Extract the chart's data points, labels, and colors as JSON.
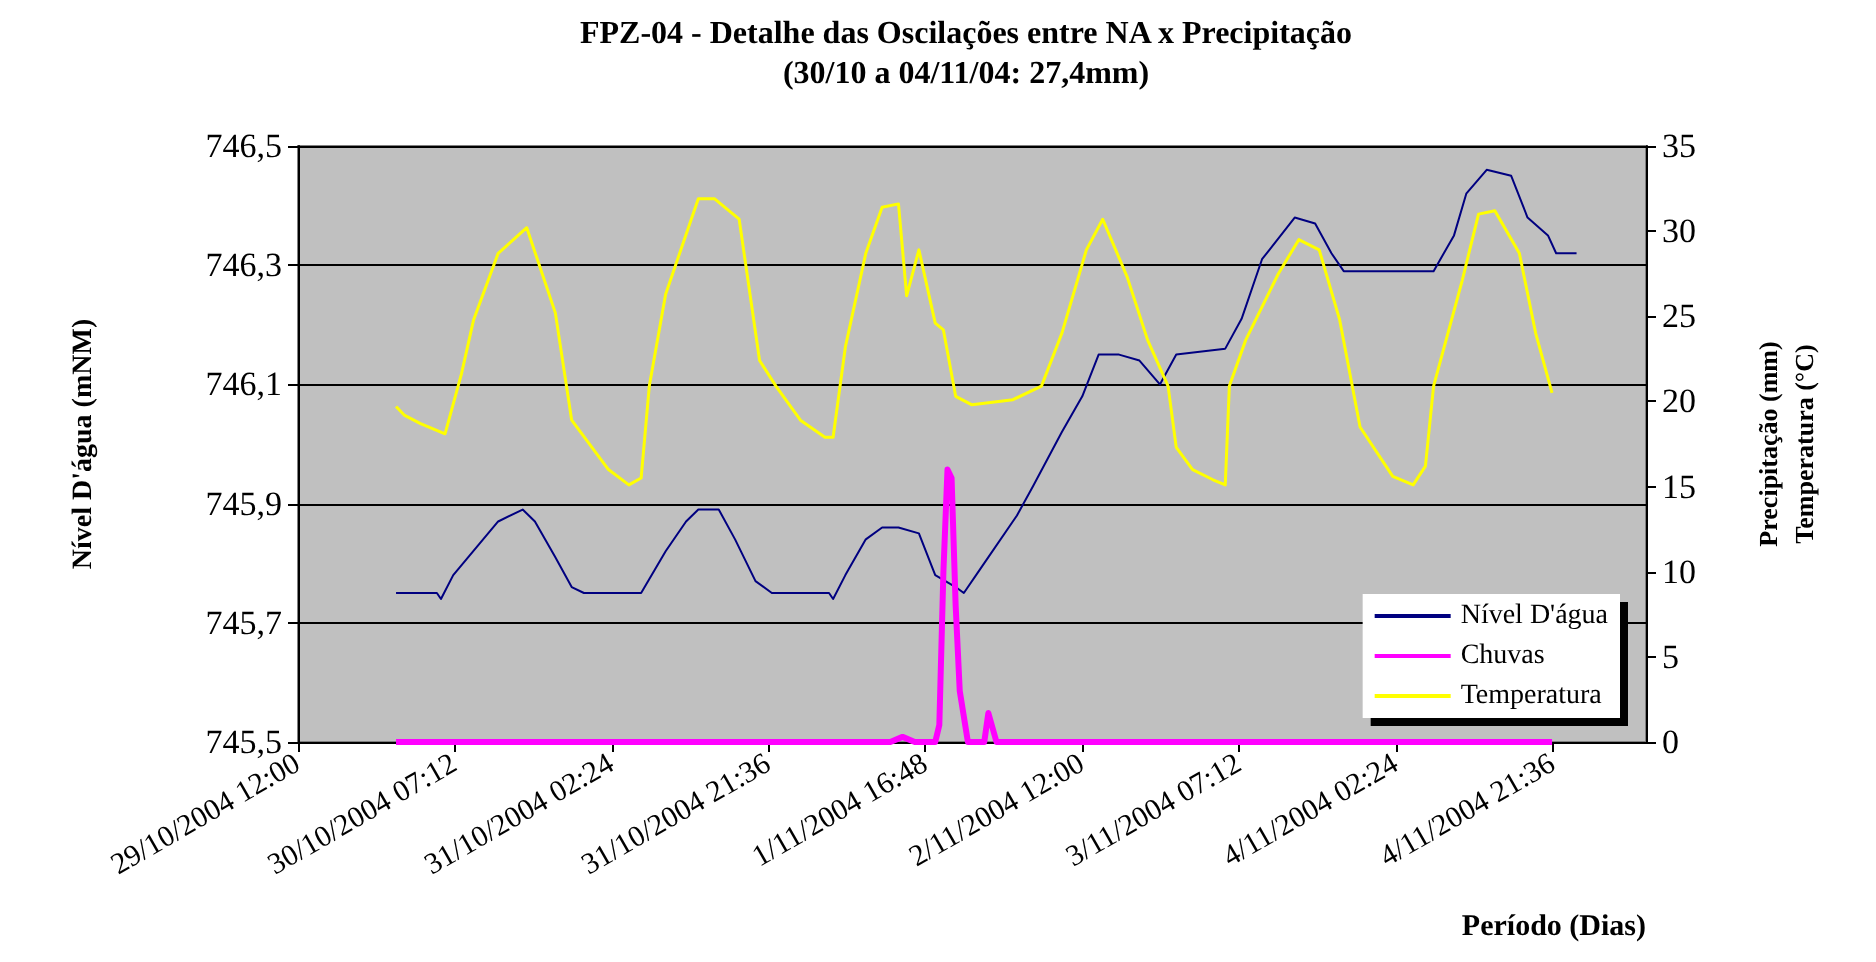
{
  "chart_data": {
    "type": "line",
    "title": "FPZ-04 - Detalhe das Oscilações entre NA x Precipitação",
    "subtitle": "(30/10 a 04/11/04: 27,4mm)",
    "xlabel": "Período (Dias)",
    "ylabel": "Nível D'água (mNM)",
    "y2label": "Precipitação (mm)\nTemperatura (°C)",
    "xlim": [
      "2004-10-29T12:00",
      "2004-11-05T09:00"
    ],
    "xticks": [
      {
        "value": "2004-10-29T12:00",
        "label": "29/10/2004 12:00"
      },
      {
        "value": "2004-10-30T07:12",
        "label": "30/10/2004 07:12"
      },
      {
        "value": "2004-10-31T02:24",
        "label": "31/10/2004 02:24"
      },
      {
        "value": "2004-10-31T21:36",
        "label": "31/10/2004 21:36"
      },
      {
        "value": "2004-11-01T16:48",
        "label": "1/11/2004 16:48"
      },
      {
        "value": "2004-11-02T12:00",
        "label": "2/11/2004 12:00"
      },
      {
        "value": "2004-11-03T07:12",
        "label": "3/11/2004 07:12"
      },
      {
        "value": "2004-11-04T02:24",
        "label": "4/11/2004 02:24"
      },
      {
        "value": "2004-11-04T21:36",
        "label": "4/11/2004 21:36"
      }
    ],
    "ylim": [
      745.5,
      746.5
    ],
    "yticks": [
      {
        "value": 745.5,
        "label": "745,5"
      },
      {
        "value": 745.7,
        "label": "745,7"
      },
      {
        "value": 745.9,
        "label": "745,9"
      },
      {
        "value": 746.1,
        "label": "746,1"
      },
      {
        "value": 746.3,
        "label": "746,3"
      },
      {
        "value": 746.5,
        "label": "746,5"
      }
    ],
    "y2lim": [
      0,
      35
    ],
    "y2ticks": [
      0,
      5,
      10,
      15,
      20,
      25,
      30,
      35
    ],
    "grid": "y",
    "legend": "bottom right",
    "series": [
      {
        "name": "Nível D'água",
        "color": "#000080",
        "x": [
          "2004-10-30T00:00",
          "2004-10-30T05:00",
          "2004-10-30T05:30",
          "2004-10-30T07:00",
          "2004-10-30T12:30",
          "2004-10-30T15:30",
          "2004-10-30T17:00",
          "2004-10-30T19:30",
          "2004-10-30T21:30",
          "2004-10-30T23:00",
          "2004-10-31T06:00",
          "2004-10-31T09:00",
          "2004-10-31T11:30",
          "2004-10-31T13:00",
          "2004-10-31T15:30",
          "2004-10-31T17:30",
          "2004-10-31T20:00",
          "2004-10-31T22:00",
          "2004-11-01T05:00",
          "2004-11-01T05:30",
          "2004-11-01T07:00",
          "2004-11-01T09:30",
          "2004-11-01T11:30",
          "2004-11-01T13:30",
          "2004-11-01T16:00",
          "2004-11-01T18:00",
          "2004-11-01T20:30",
          "2004-11-01T21:30",
          "2004-11-01T23:30",
          "2004-11-02T04:00",
          "2004-11-02T06:00",
          "2004-11-02T09:30",
          "2004-11-02T12:00",
          "2004-11-02T14:00",
          "2004-11-02T16:30",
          "2004-11-02T19:00",
          "2004-11-02T21:30",
          "2004-11-02T23:30",
          "2004-11-03T05:30",
          "2004-11-03T07:30",
          "2004-11-03T10:00",
          "2004-11-03T14:00",
          "2004-11-03T16:30",
          "2004-11-03T18:30",
          "2004-11-03T20:00",
          "2004-11-04T07:00",
          "2004-11-04T09:30",
          "2004-11-04T11:00",
          "2004-11-04T13:30",
          "2004-11-04T16:30",
          "2004-11-04T18:30",
          "2004-11-04T21:00",
          "2004-11-04T22:00",
          "2004-11-05T00:30"
        ],
        "values": [
          745.75,
          745.75,
          745.74,
          745.78,
          745.87,
          745.89,
          745.87,
          745.81,
          745.76,
          745.75,
          745.75,
          745.82,
          745.87,
          745.89,
          745.89,
          745.84,
          745.77,
          745.75,
          745.75,
          745.74,
          745.78,
          745.84,
          745.86,
          745.86,
          745.85,
          745.78,
          745.76,
          745.75,
          745.79,
          745.88,
          745.93,
          746.02,
          746.08,
          746.15,
          746.15,
          746.14,
          746.1,
          746.15,
          746.16,
          746.21,
          746.31,
          746.38,
          746.37,
          746.32,
          746.29,
          746.29,
          746.35,
          746.42,
          746.46,
          746.45,
          746.38,
          746.35,
          746.32,
          746.32
        ]
      },
      {
        "name": "Chuvas",
        "color": "#ff00ff",
        "axis": "y2",
        "x": [
          "2004-10-30T00:00",
          "2004-11-01T12:30",
          "2004-11-01T14:00",
          "2004-11-01T15:30",
          "2004-11-01T18:00",
          "2004-11-01T18:30",
          "2004-11-01T19:00",
          "2004-11-01T19:30",
          "2004-11-01T20:00",
          "2004-11-01T20:30",
          "2004-11-01T21:00",
          "2004-11-01T22:00",
          "2004-11-02T00:00",
          "2004-11-02T00:30",
          "2004-11-02T01:30",
          "2004-11-04T21:30"
        ],
        "values": [
          0,
          0,
          0.3,
          0,
          0,
          1,
          10,
          16,
          15.5,
          8,
          3,
          0,
          0,
          1.7,
          0,
          0
        ]
      },
      {
        "name": "Temperatura",
        "color": "#ffff00",
        "axis": "y2",
        "x": [
          "2004-10-30T00:00",
          "2004-10-30T01:00",
          "2004-10-30T03:00",
          "2004-10-30T06:00",
          "2004-10-30T08:00",
          "2004-10-30T09:30",
          "2004-10-30T12:30",
          "2004-10-30T16:00",
          "2004-10-30T19:30",
          "2004-10-30T21:30",
          "2004-10-31T02:00",
          "2004-10-31T04:30",
          "2004-10-31T06:00",
          "2004-10-31T07:00",
          "2004-10-31T09:00",
          "2004-10-31T13:00",
          "2004-10-31T15:00",
          "2004-10-31T18:00",
          "2004-10-31T20:30",
          "2004-10-31T22:30",
          "2004-11-01T01:30",
          "2004-11-01T04:30",
          "2004-11-01T05:30",
          "2004-11-01T07:00",
          "2004-11-01T09:30",
          "2004-11-01T11:30",
          "2004-11-01T13:30",
          "2004-11-01T14:30",
          "2004-11-01T16:00",
          "2004-11-01T18:00",
          "2004-11-01T19:00",
          "2004-11-01T20:30",
          "2004-11-01T22:30",
          "2004-11-02T03:30",
          "2004-11-02T07:00",
          "2004-11-02T09:30",
          "2004-11-02T12:30",
          "2004-11-02T14:30",
          "2004-11-02T17:30",
          "2004-11-02T20:00",
          "2004-11-02T22:30",
          "2004-11-02T23:30",
          "2004-11-03T01:30",
          "2004-11-03T04:00",
          "2004-11-03T05:30",
          "2004-11-03T06:00",
          "2004-11-03T08:00",
          "2004-11-03T12:00",
          "2004-11-03T14:30",
          "2004-11-03T17:00",
          "2004-11-03T19:30",
          "2004-11-03T22:00",
          "2004-11-04T02:00",
          "2004-11-04T04:30",
          "2004-11-04T06:00",
          "2004-11-04T07:00",
          "2004-11-04T10:30",
          "2004-11-04T12:30",
          "2004-11-04T14:30",
          "2004-11-04T17:30",
          "2004-11-04T19:30",
          "2004-11-04T21:30"
        ],
        "values": [
          19.7,
          19.2,
          18.7,
          18.1,
          21.6,
          24.8,
          28.7,
          30.2,
          25.2,
          18.9,
          16.0,
          15.1,
          15.5,
          20.9,
          26.3,
          31.9,
          31.9,
          30.7,
          22.4,
          20.9,
          18.9,
          17.9,
          17.9,
          23.2,
          28.7,
          31.4,
          31.6,
          26.2,
          28.9,
          24.6,
          24.2,
          20.3,
          19.8,
          20.1,
          20.9,
          24.0,
          28.9,
          30.7,
          27.3,
          23.6,
          20.9,
          17.3,
          16.0,
          15.4,
          15.1,
          20.9,
          23.6,
          27.5,
          29.5,
          28.9,
          24.8,
          18.5,
          15.6,
          15.1,
          16.2,
          20.9,
          27.1,
          31.0,
          31.2,
          28.7,
          24.0,
          20.5
        ]
      }
    ]
  }
}
